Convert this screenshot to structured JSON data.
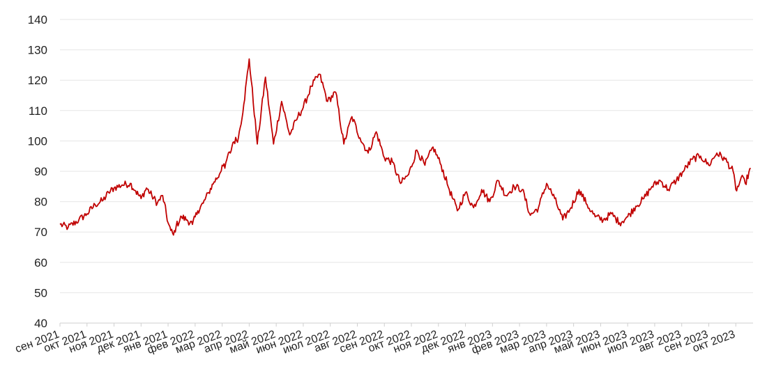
{
  "chart_data": {
    "type": "line",
    "title": "",
    "xlabel": "",
    "ylabel": "",
    "ylim": [
      40,
      140
    ],
    "yticks": [
      40,
      50,
      60,
      70,
      80,
      90,
      100,
      110,
      120,
      130,
      140
    ],
    "grid": true,
    "legend": "none",
    "colors": {
      "line": "#c00000",
      "grid": "#e6e6e6",
      "text": "#222222"
    },
    "xtick_labels": [
      "сен 2021",
      "окт 2021",
      "ноя 2021",
      "дек 2021",
      "янв 2021",
      "фев 2022",
      "мар 2022",
      "апр 2022",
      "май 2022",
      "июн 2022",
      "июл 2022",
      "авг 2022",
      "сен 2022",
      "окт 2022",
      "ноя 2022",
      "дек 2022",
      "янв 2023",
      "фев 2023",
      "мар 2023",
      "апр 2023",
      "май 2023",
      "июн 2023",
      "июл 2023",
      "авг 2023",
      "сен 2023",
      "окт 2023"
    ],
    "series": [
      {
        "x": [
          0,
          0.3,
          0.7,
          1.0,
          1.3,
          1.6,
          1.8,
          2.0,
          2.3,
          2.6,
          2.8,
          3.0,
          3.2,
          3.4,
          3.6,
          3.8,
          4.0,
          4.1,
          4.2,
          4.3,
          4.5,
          4.7,
          4.9,
          5.1,
          5.3,
          5.5,
          5.7,
          5.9,
          6.0,
          6.1,
          6.2,
          6.3,
          6.4,
          6.6,
          6.8,
          7.0,
          7.3,
          7.6,
          7.9,
          8.2,
          8.5,
          8.8,
          9.0,
          9.3,
          9.6,
          9.9,
          10.2,
          10.5,
          10.8,
          11.1,
          11.4,
          11.7,
          12.0,
          12.3,
          12.6,
          12.9,
          13.2,
          13.5,
          13.8,
          14.1,
          14.4,
          14.7,
          15.0,
          15.3,
          15.6,
          15.9,
          16.2,
          16.5,
          16.8,
          17.1,
          17.4,
          17.7,
          18.0,
          18.3,
          18.6,
          18.9,
          19.2,
          19.5,
          19.8,
          20.1,
          20.4,
          20.7,
          21.0,
          21.3,
          21.6,
          21.9,
          22.2,
          22.5,
          22.8,
          23.1,
          23.4,
          23.7,
          24.0,
          24.3,
          24.6,
          24.9,
          25.0,
          25.1,
          25.2,
          25.35,
          25.55
        ],
        "values": [
          72.5,
          71.5,
          74.0,
          76.0,
          79.0,
          80.5,
          83.0,
          84.5,
          85.5,
          86.0,
          83.5,
          81.0,
          84.5,
          82.0,
          79.5,
          82.0,
          73.0,
          70.5,
          69.0,
          72.0,
          75.0,
          74.0,
          72.5,
          77.0,
          79.5,
          83.0,
          86.5,
          89.0,
          92.0,
          91.0,
          95.0,
          96.0,
          99.5,
          101.0,
          112.0,
          127.0,
          99.0,
          121.0,
          99.0,
          113.0,
          102.0,
          108.0,
          111.0,
          118.0,
          122.0,
          113.0,
          116.0,
          99.0,
          108.0,
          101.0,
          96.0,
          103.0,
          94.5,
          93.0,
          86.0,
          89.0,
          97.0,
          92.0,
          98.0,
          92.0,
          84.0,
          77.0,
          83.0,
          78.0,
          84.0,
          80.0,
          87.0,
          82.0,
          85.0,
          84.0,
          75.5,
          78.0,
          86.0,
          81.0,
          74.0,
          78.0,
          84.0,
          79.0,
          75.0,
          74.0,
          76.0,
          73.0,
          75.0,
          78.5,
          81.0,
          85.0,
          87.0,
          84.0,
          87.0,
          90.5,
          94.0,
          95.0,
          92.0,
          96.0,
          94.0,
          90.0,
          84.0,
          85.0,
          88.0,
          86.0,
          91.0
        ]
      }
    ]
  }
}
